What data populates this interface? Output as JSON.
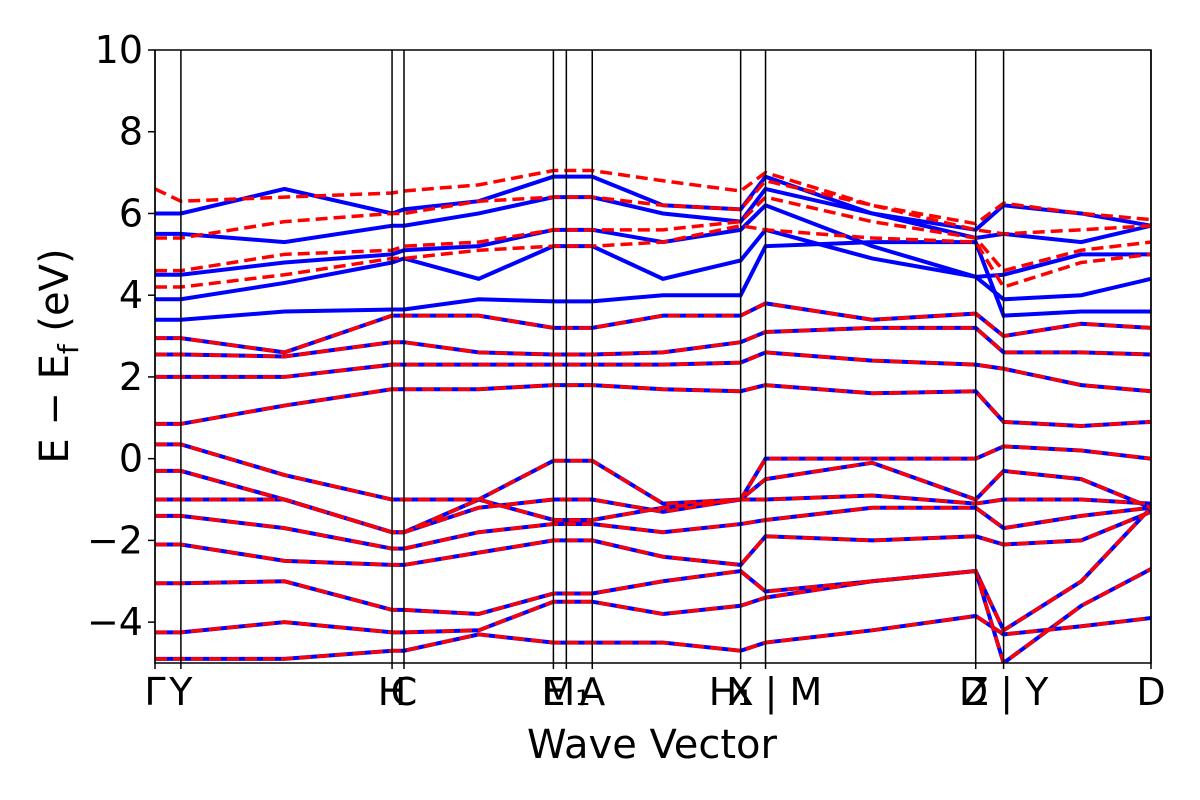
{
  "chart_data": {
    "type": "line",
    "xlabel": "Wave Vector",
    "ylabel_parts": [
      "E − E",
      "f",
      " (eV)"
    ],
    "xlim": [
      0,
      1
    ],
    "ylim": [
      -5,
      10
    ],
    "yticks": [
      {
        "value": -4,
        "label": "−4"
      },
      {
        "value": -2,
        "label": "−2"
      },
      0,
      2,
      4,
      6,
      8,
      10
    ],
    "xticks": [
      {
        "value": 0,
        "label": "Γ"
      },
      {
        "value": 0.026,
        "label": "Y"
      },
      {
        "value": 0.238,
        "label": "H"
      },
      {
        "value": 0.25,
        "label": "C"
      },
      {
        "value": 0.4,
        "label": "E"
      },
      {
        "value": 0.413,
        "label": "M₁"
      },
      {
        "value": 0.439,
        "label": "A"
      },
      {
        "value": 0.588,
        "label": "X"
      },
      {
        "value": 0.613,
        "label": "H₁ | M"
      },
      {
        "value": 0.824,
        "label": "Z"
      },
      {
        "value": 0.852,
        "label": "D | Y"
      },
      {
        "value": 1.0,
        "label": "D"
      }
    ],
    "x": [
      0,
      0.026,
      0.13,
      0.238,
      0.25,
      0.325,
      0.4,
      0.413,
      0.439,
      0.51,
      0.588,
      0.613,
      0.72,
      0.824,
      0.852,
      0.93,
      1.0
    ],
    "series": [
      {
        "color": "#0000ff",
        "linestyle": "solid",
        "bands": [
          [
            -4.9,
            -4.9,
            -4.9,
            -4.7,
            -4.7,
            -4.3,
            -4.5,
            -4.5,
            -4.5,
            -4.5,
            -4.7,
            -4.5,
            -4.2,
            -3.85,
            -4.3,
            -4.1,
            -3.9
          ],
          [
            -4.25,
            -4.25,
            -4.0,
            -4.25,
            -4.25,
            -4.2,
            -3.5,
            -3.5,
            -3.5,
            -3.8,
            -3.6,
            -3.4,
            -3.0,
            -2.75,
            -5.0,
            -3.6,
            -2.7
          ],
          [
            -3.05,
            -3.05,
            -3.0,
            -3.7,
            -3.7,
            -3.8,
            -3.3,
            -3.3,
            -3.3,
            -3.0,
            -2.75,
            -3.25,
            -3.0,
            -2.75,
            -4.2,
            -3.0,
            -1.2
          ],
          [
            -2.1,
            -2.1,
            -2.5,
            -2.6,
            -2.6,
            -2.3,
            -2.0,
            -2.0,
            -2.0,
            -2.4,
            -2.6,
            -1.9,
            -2.0,
            -1.9,
            -2.1,
            -2.0,
            -1.3
          ],
          [
            -1.4,
            -1.4,
            -1.7,
            -2.2,
            -2.2,
            -1.8,
            -1.6,
            -1.6,
            -1.6,
            -1.8,
            -1.6,
            -1.5,
            -1.2,
            -1.2,
            -1.7,
            -1.4,
            -1.2
          ],
          [
            -1.0,
            -1.0,
            -1.0,
            -1.8,
            -1.8,
            -1.2,
            -1.0,
            -1.0,
            -1.0,
            -1.3,
            -1.0,
            -1.0,
            -0.9,
            -1.1,
            -1.0,
            -1.0,
            -1.1
          ],
          [
            -0.3,
            -0.3,
            -1.0,
            -1.8,
            -1.8,
            -1.0,
            -1.5,
            -1.5,
            -1.5,
            -1.2,
            -1.0,
            -0.5,
            -0.1,
            -1.0,
            -0.3,
            -0.5,
            -1.2
          ],
          [
            0.35,
            0.35,
            -0.4,
            -1.0,
            -1.0,
            -1.0,
            -0.05,
            -0.05,
            -0.05,
            -1.1,
            -1.0,
            0.0,
            0.0,
            0.0,
            0.3,
            0.2,
            0.0
          ],
          [
            0.85,
            0.85,
            1.3,
            1.7,
            1.7,
            1.7,
            1.8,
            1.8,
            1.8,
            1.7,
            1.65,
            1.8,
            1.6,
            1.65,
            0.9,
            0.8,
            0.9
          ],
          [
            2.0,
            2.0,
            2.0,
            2.3,
            2.3,
            2.3,
            2.3,
            2.3,
            2.3,
            2.3,
            2.35,
            2.6,
            2.4,
            2.3,
            2.2,
            1.8,
            1.65
          ],
          [
            2.55,
            2.55,
            2.5,
            2.85,
            2.85,
            2.6,
            2.55,
            2.55,
            2.55,
            2.6,
            2.85,
            3.1,
            3.2,
            3.2,
            2.6,
            2.6,
            2.55
          ],
          [
            2.95,
            2.95,
            2.6,
            3.5,
            3.5,
            3.5,
            3.2,
            3.2,
            3.2,
            3.5,
            3.5,
            3.8,
            3.4,
            3.55,
            3.0,
            3.3,
            3.2
          ],
          [
            3.4,
            3.4,
            3.6,
            3.65,
            3.65,
            3.9,
            3.85,
            3.85,
            3.85,
            4.0,
            4.0,
            5.2,
            5.3,
            5.3,
            3.5,
            3.6,
            3.6
          ],
          [
            3.9,
            3.9,
            4.3,
            4.8,
            4.9,
            4.4,
            5.2,
            5.2,
            5.2,
            4.4,
            4.85,
            5.6,
            4.9,
            4.45,
            3.9,
            4.0,
            4.4
          ],
          [
            4.5,
            4.5,
            4.8,
            5.0,
            5.1,
            5.2,
            5.6,
            5.6,
            5.6,
            5.3,
            5.6,
            6.2,
            5.2,
            4.45,
            4.5,
            5.0,
            5.0
          ],
          [
            5.5,
            5.5,
            5.3,
            5.7,
            5.7,
            6.0,
            6.4,
            6.4,
            6.4,
            6.0,
            5.8,
            6.6,
            6.0,
            5.4,
            5.5,
            5.3,
            5.7
          ],
          [
            6.0,
            6.0,
            6.6,
            6.0,
            6.1,
            6.3,
            6.9,
            6.9,
            6.9,
            6.2,
            6.1,
            6.9,
            6.0,
            5.6,
            6.2,
            6.0,
            5.7
          ]
        ]
      },
      {
        "color": "#ff0000",
        "linestyle": "dashed",
        "bands": [
          [
            -4.9,
            -4.9,
            -4.9,
            -4.7,
            -4.7,
            -4.3,
            -4.5,
            -4.5,
            -4.5,
            -4.5,
            -4.7,
            -4.5,
            -4.2,
            -3.85,
            -4.3,
            -4.1,
            -3.9
          ],
          [
            -4.25,
            -4.25,
            -4.0,
            -4.25,
            -4.25,
            -4.2,
            -3.5,
            -3.5,
            -3.5,
            -3.8,
            -3.6,
            -3.4,
            -3.0,
            -2.75,
            -5.0,
            -3.6,
            -2.7
          ],
          [
            -3.05,
            -3.05,
            -3.0,
            -3.7,
            -3.7,
            -3.8,
            -3.3,
            -3.3,
            -3.3,
            -3.0,
            -2.75,
            -3.25,
            -3.0,
            -2.75,
            -4.2,
            -3.0,
            -1.2
          ],
          [
            -2.1,
            -2.1,
            -2.5,
            -2.6,
            -2.6,
            -2.3,
            -2.0,
            -2.0,
            -2.0,
            -2.4,
            -2.6,
            -1.9,
            -2.0,
            -1.9,
            -2.1,
            -2.0,
            -1.3
          ],
          [
            -1.4,
            -1.4,
            -1.7,
            -2.2,
            -2.2,
            -1.8,
            -1.6,
            -1.6,
            -1.6,
            -1.8,
            -1.6,
            -1.5,
            -1.2,
            -1.2,
            -1.7,
            -1.4,
            -1.2
          ],
          [
            -1.0,
            -1.0,
            -1.0,
            -1.8,
            -1.8,
            -1.2,
            -1.0,
            -1.0,
            -1.0,
            -1.3,
            -1.0,
            -1.0,
            -0.9,
            -1.1,
            -1.0,
            -1.0,
            -1.1
          ],
          [
            -0.3,
            -0.3,
            -1.0,
            -1.8,
            -1.8,
            -1.0,
            -1.5,
            -1.5,
            -1.5,
            -1.2,
            -1.0,
            -0.5,
            -0.1,
            -1.0,
            -0.3,
            -0.5,
            -1.2
          ],
          [
            0.35,
            0.35,
            -0.4,
            -1.0,
            -1.0,
            -1.0,
            -0.05,
            -0.05,
            -0.05,
            -1.1,
            -1.0,
            0.0,
            0.0,
            0.0,
            0.3,
            0.2,
            0.0
          ],
          [
            0.85,
            0.85,
            1.3,
            1.7,
            1.7,
            1.7,
            1.8,
            1.8,
            1.8,
            1.7,
            1.65,
            1.8,
            1.6,
            1.65,
            0.9,
            0.8,
            0.9
          ],
          [
            2.0,
            2.0,
            2.0,
            2.3,
            2.3,
            2.3,
            2.3,
            2.3,
            2.3,
            2.3,
            2.35,
            2.6,
            2.4,
            2.3,
            2.2,
            1.8,
            1.65
          ],
          [
            2.55,
            2.55,
            2.5,
            2.85,
            2.85,
            2.6,
            2.55,
            2.55,
            2.55,
            2.6,
            2.85,
            3.1,
            3.2,
            3.2,
            2.6,
            2.6,
            2.55
          ],
          [
            2.95,
            2.95,
            2.6,
            3.5,
            3.5,
            3.5,
            3.2,
            3.2,
            3.2,
            3.5,
            3.5,
            3.8,
            3.4,
            3.55,
            3.0,
            3.3,
            3.2
          ],
          [
            4.2,
            4.2,
            4.5,
            4.9,
            4.9,
            5.1,
            5.2,
            5.2,
            5.2,
            5.3,
            5.7,
            5.6,
            5.4,
            5.3,
            4.2,
            4.8,
            5.0
          ],
          [
            4.6,
            4.6,
            5.0,
            5.1,
            5.2,
            5.3,
            5.6,
            5.6,
            5.6,
            5.6,
            5.8,
            6.4,
            5.8,
            5.4,
            4.6,
            5.1,
            5.3
          ],
          [
            5.4,
            5.4,
            5.8,
            6.0,
            6.0,
            6.3,
            6.4,
            6.4,
            6.4,
            6.2,
            6.1,
            6.8,
            6.2,
            5.6,
            5.5,
            5.6,
            5.7
          ],
          [
            6.6,
            6.3,
            6.4,
            6.5,
            6.55,
            6.7,
            7.05,
            7.05,
            7.05,
            6.8,
            6.55,
            7.0,
            6.2,
            5.75,
            6.25,
            6.0,
            5.85
          ]
        ]
      }
    ]
  }
}
